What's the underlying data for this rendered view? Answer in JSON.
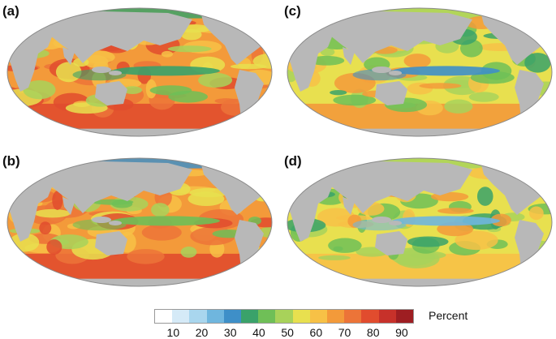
{
  "panels": [
    {
      "label": "(a)",
      "palette": "warm"
    },
    {
      "label": "(c)",
      "palette": "mild"
    },
    {
      "label": "(b)",
      "palette": "warm2"
    },
    {
      "label": "(d)",
      "palette": "mild2"
    }
  ],
  "colorbar": {
    "colors": [
      "#ffffff",
      "#d5eaf7",
      "#a9d6ee",
      "#6fb6de",
      "#3e8fc8",
      "#3aa26a",
      "#6fbf57",
      "#a8d25a",
      "#e8e04f",
      "#f7c146",
      "#f39a3a",
      "#ec7438",
      "#e14c2e",
      "#c7312a",
      "#9e1e22"
    ],
    "tick_labels": [
      "10",
      "20",
      "30",
      "40",
      "50",
      "60",
      "70",
      "80",
      "90"
    ],
    "unit": "Percent"
  },
  "colors": {
    "land": "#b8b8b8",
    "outline": "#8a8a8a"
  }
}
